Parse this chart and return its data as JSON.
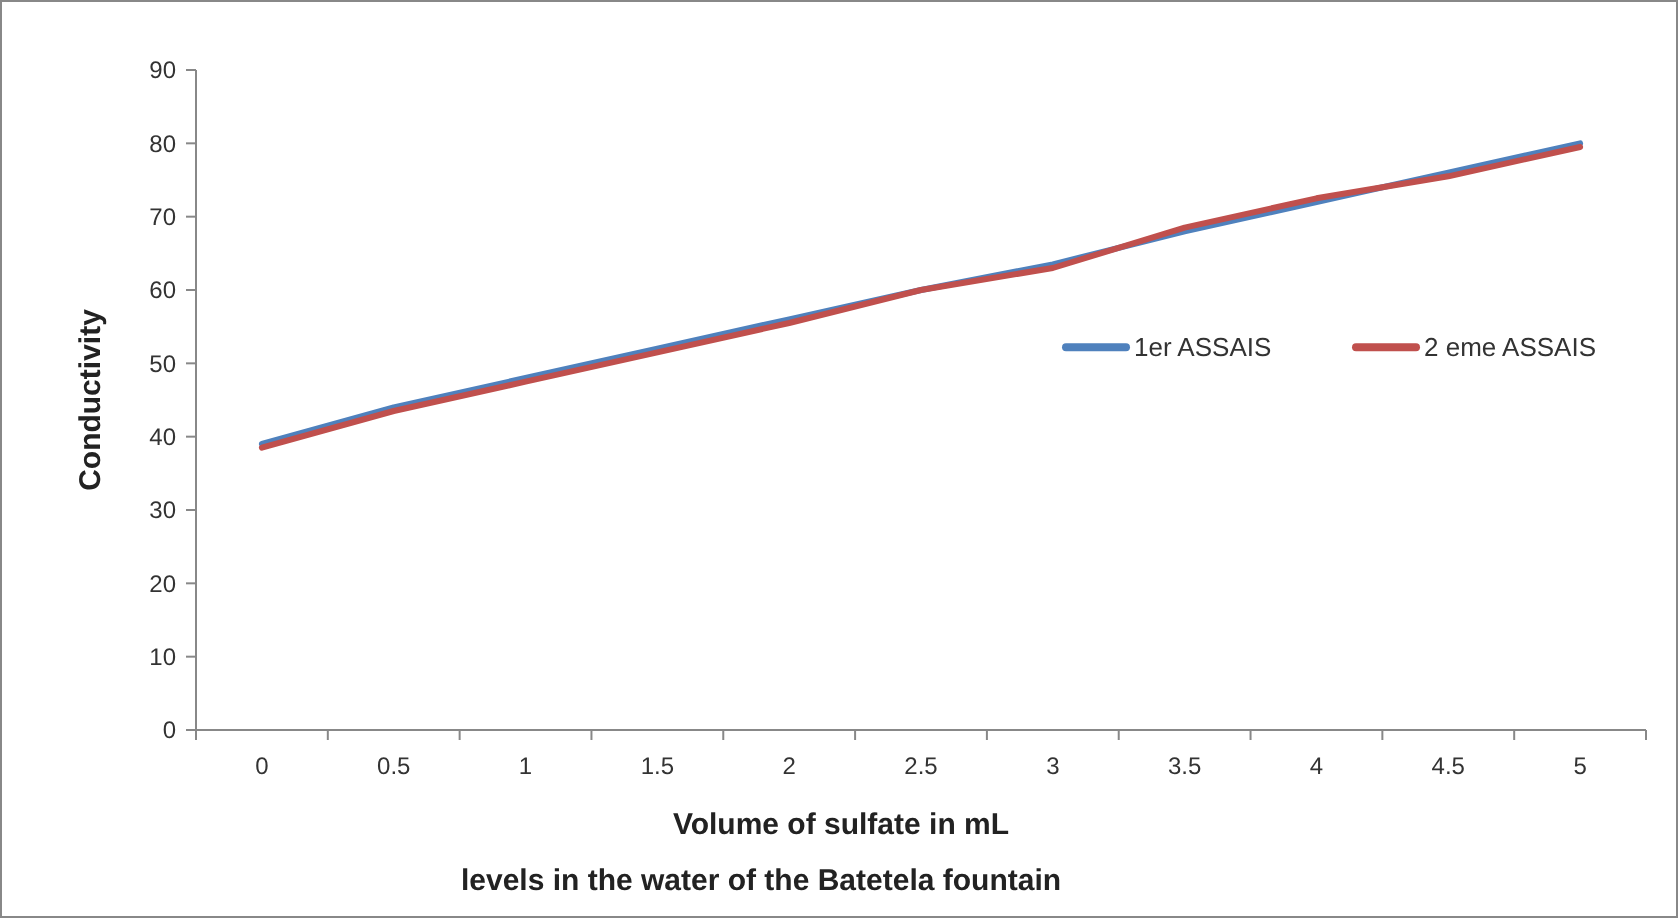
{
  "chart_data": {
    "type": "line",
    "xlabel": "Volume of sulfate in mL",
    "ylabel": "Conductivity",
    "annotations": [
      "levels in the water of the Batetela fountain"
    ],
    "categories": [
      "0",
      "0.5",
      "1",
      "1.5",
      "2",
      "2.5",
      "3",
      "3.5",
      "4",
      "4.5",
      "5"
    ],
    "series": [
      {
        "name": "1er ASSAIS",
        "color": "#4f81bd",
        "values": [
          39,
          44,
          48,
          52,
          56,
          60,
          63.5,
          68,
          72,
          76,
          80
        ]
      },
      {
        "name": "2 eme ASSAIS",
        "color": "#c0504d",
        "values": [
          38.5,
          43.5,
          47.5,
          51.5,
          55.5,
          60,
          63,
          68.5,
          72.5,
          75.5,
          79.5
        ]
      }
    ],
    "ylim": [
      0,
      90
    ],
    "yticks": [
      0,
      10,
      20,
      30,
      40,
      50,
      60,
      70,
      80,
      90
    ],
    "grid": false,
    "legend": "right",
    "marker": "none",
    "line_style": "solid"
  }
}
